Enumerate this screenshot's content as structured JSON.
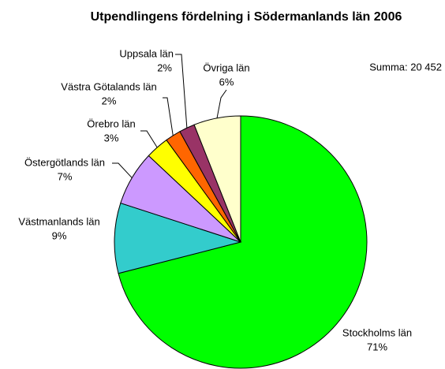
{
  "chart_data": {
    "type": "pie",
    "title": "Utpendlingens fördelning i Södermanlands län 2006",
    "annotation": "Summa: 20 452",
    "categories": [
      "Stockholms län",
      "Västmanlands län",
      "Östergötlands län",
      "Örebro län",
      "Västra Götalands län",
      "Uppsala län",
      "Övriga län"
    ],
    "values": [
      71,
      9,
      7,
      3,
      2,
      2,
      6
    ],
    "value_labels": [
      "71%",
      "9%",
      "7%",
      "3%",
      "2%",
      "2%",
      "6%"
    ],
    "colors": [
      "#00ff00",
      "#33cccc",
      "#cc99ff",
      "#ffff00",
      "#ff6600",
      "#993366",
      "#ffffcc"
    ]
  }
}
